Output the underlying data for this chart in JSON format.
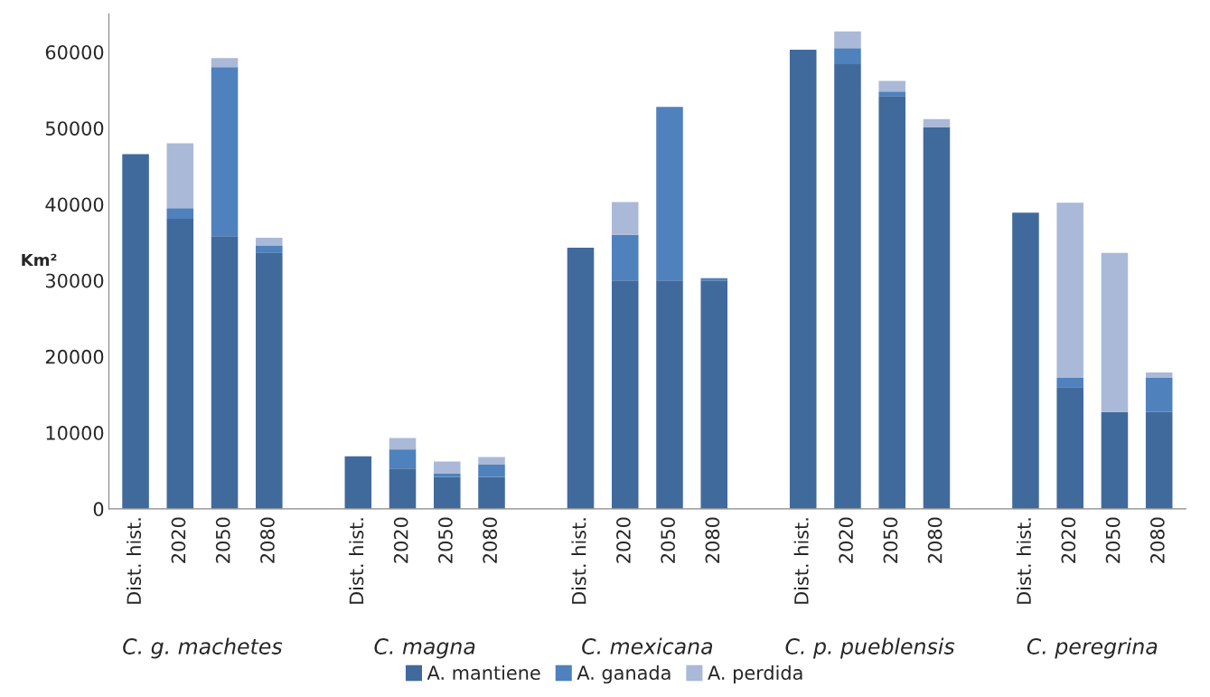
{
  "chart_data": {
    "type": "bar",
    "stacked": true,
    "ylabel": "Km²",
    "categories": [
      "Dist. hist.",
      "2020",
      "2050",
      "2080",
      null,
      "Dist. hist.",
      "2020",
      "2050",
      "2080",
      null,
      "Dist. hist.",
      "2020",
      "2050",
      "2080",
      null,
      "Dist. hist.",
      "2020",
      "2050",
      "2080",
      null,
      "Dist. hist.",
      "2020",
      "2050",
      "2080"
    ],
    "series": [
      {
        "name": "A. mantiene",
        "color": "#416a9c",
        "values": [
          46600,
          38100,
          35800,
          33600,
          null,
          6900,
          5300,
          4200,
          4200,
          null,
          34300,
          30000,
          30000,
          30000,
          null,
          60300,
          58400,
          54200,
          50100,
          null,
          38900,
          15900,
          12700,
          12700
        ]
      },
      {
        "name": "A. ganada",
        "color": "#4f81bd",
        "values": [
          0,
          1400,
          22200,
          1000,
          null,
          0,
          2500,
          400,
          1600,
          null,
          0,
          6000,
          22800,
          300,
          null,
          0,
          2100,
          600,
          0,
          null,
          0,
          1300,
          0,
          4500
        ]
      },
      {
        "name": "A. perdida",
        "color": "#aab9d7",
        "values": [
          0,
          8500,
          1200,
          1000,
          null,
          0,
          1500,
          1600,
          1000,
          null,
          0,
          4300,
          0,
          0,
          null,
          0,
          2200,
          1400,
          1100,
          null,
          0,
          23000,
          20900,
          700
        ]
      }
    ],
    "ylim": [
      0,
      65000
    ],
    "yticks": [
      0,
      10000,
      20000,
      30000,
      40000,
      50000,
      60000
    ],
    "annotations": [
      "C. g. machetes",
      "C. magna",
      "C. mexicana",
      "C. p. pueblensis",
      "C. peregrina"
    ],
    "grid": false,
    "legend": "bottom"
  }
}
